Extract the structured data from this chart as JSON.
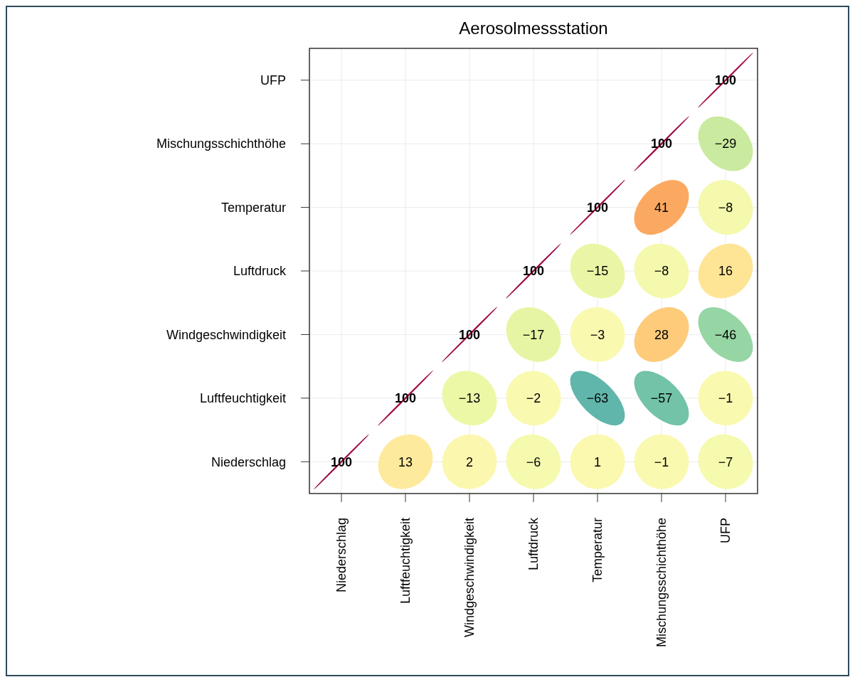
{
  "chart_data": {
    "type": "heatmap",
    "title": "Aerosolmessstation",
    "categories": [
      "Niederschlag",
      "Luftfeuchtigkeit",
      "Windgeschwindigkeit",
      "Luftdruck",
      "Temperatur",
      "Mischungsschichthöhe",
      "UFP"
    ],
    "y_categories": [
      "UFP",
      "Mischungsschichthöhe",
      "Temperatur",
      "Luftdruck",
      "Windgeschwindigkeit",
      "Luftfeuchtigkeit",
      "Niederschlag"
    ],
    "cells": [
      [
        null,
        null,
        null,
        null,
        null,
        null,
        100
      ],
      [
        null,
        null,
        null,
        null,
        null,
        100,
        -29
      ],
      [
        null,
        null,
        null,
        null,
        100,
        41,
        -8
      ],
      [
        null,
        null,
        null,
        100,
        -15,
        -8,
        16
      ],
      [
        null,
        null,
        100,
        -17,
        -3,
        28,
        -46
      ],
      [
        null,
        100,
        -13,
        -2,
        -63,
        -57,
        -1
      ],
      [
        100,
        13,
        2,
        -6,
        1,
        -1,
        -7
      ]
    ],
    "data_labels": true,
    "grid": true
  }
}
